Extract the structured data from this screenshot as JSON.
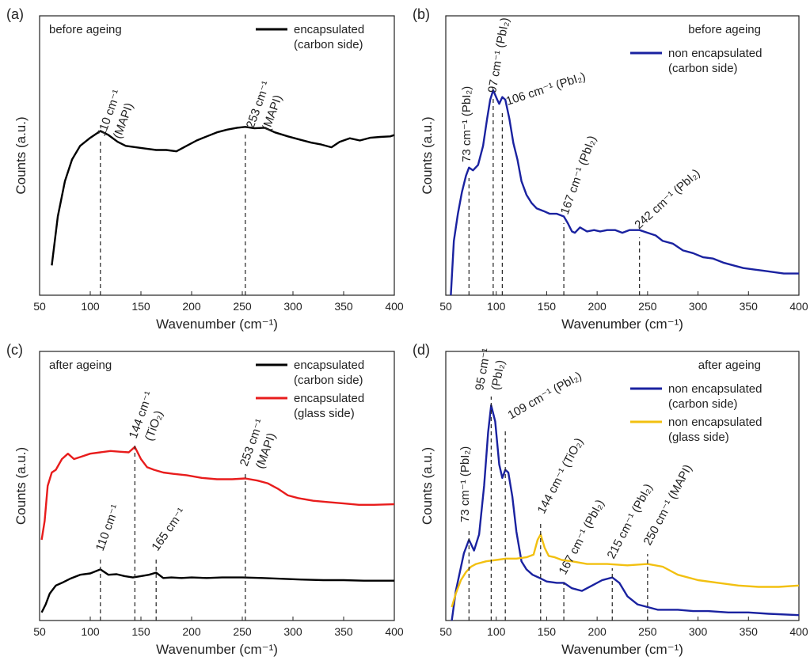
{
  "chart_data": [
    {
      "id": "a",
      "type": "line",
      "panel_label": "(a)",
      "condition": "before ageing",
      "xlabel": "Wavenumber (cm⁻¹)",
      "ylabel": "Counts (a.u.)",
      "xlim": [
        50,
        400
      ],
      "xticks": [
        50,
        100,
        150,
        200,
        250,
        300,
        350,
        400
      ],
      "ylim": [
        0,
        1
      ],
      "legend_position": "top-right",
      "series": [
        {
          "name": "encapsulated\n(carbon side)",
          "color": "#000000",
          "points": [
            [
              62,
              0.11
            ],
            [
              68,
              0.29
            ],
            [
              75,
              0.42
            ],
            [
              82,
              0.5
            ],
            [
              90,
              0.55
            ],
            [
              100,
              0.58
            ],
            [
              110,
              0.605
            ],
            [
              118,
              0.59
            ],
            [
              127,
              0.565
            ],
            [
              135,
              0.55
            ],
            [
              145,
              0.545
            ],
            [
              155,
              0.54
            ],
            [
              165,
              0.535
            ],
            [
              175,
              0.535
            ],
            [
              185,
              0.53
            ],
            [
              195,
              0.55
            ],
            [
              205,
              0.57
            ],
            [
              215,
              0.585
            ],
            [
              225,
              0.6
            ],
            [
              235,
              0.61
            ],
            [
              245,
              0.617
            ],
            [
              253,
              0.62
            ],
            [
              262,
              0.615
            ],
            [
              272,
              0.617
            ],
            [
              282,
              0.6
            ],
            [
              295,
              0.585
            ],
            [
              308,
              0.572
            ],
            [
              318,
              0.562
            ],
            [
              328,
              0.555
            ],
            [
              338,
              0.545
            ],
            [
              346,
              0.565
            ],
            [
              356,
              0.578
            ],
            [
              366,
              0.57
            ],
            [
              376,
              0.58
            ],
            [
              386,
              0.583
            ],
            [
              396,
              0.585
            ],
            [
              400,
              0.59
            ]
          ]
        }
      ],
      "annotations": [
        {
          "x": 110,
          "text": "110 cm⁻¹",
          "sub": "(MAPI)"
        },
        {
          "x": 253,
          "text": "253 cm⁻¹",
          "sub": "(MAPI)"
        }
      ]
    },
    {
      "id": "b",
      "type": "line",
      "panel_label": "(b)",
      "condition": "before ageing",
      "xlabel": "Wavenumber (cm⁻¹)",
      "ylabel": "Counts (a.u.)",
      "xlim": [
        50,
        400
      ],
      "xticks": [
        50,
        100,
        150,
        200,
        250,
        300,
        350,
        400
      ],
      "ylim": [
        0,
        1
      ],
      "legend_position": "top-right",
      "series": [
        {
          "name": "non encapsulated\n(carbon side)",
          "color": "#1a22a0",
          "points": [
            [
              55,
              0.0
            ],
            [
              58,
              0.2
            ],
            [
              62,
              0.3
            ],
            [
              66,
              0.38
            ],
            [
              70,
              0.44
            ],
            [
              73,
              0.47
            ],
            [
              77,
              0.46
            ],
            [
              82,
              0.48
            ],
            [
              87,
              0.55
            ],
            [
              91,
              0.65
            ],
            [
              94,
              0.72
            ],
            [
              97,
              0.755
            ],
            [
              101,
              0.72
            ],
            [
              103,
              0.705
            ],
            [
              106,
              0.73
            ],
            [
              109,
              0.72
            ],
            [
              113,
              0.65
            ],
            [
              117,
              0.56
            ],
            [
              121,
              0.5
            ],
            [
              125,
              0.42
            ],
            [
              130,
              0.37
            ],
            [
              135,
              0.34
            ],
            [
              140,
              0.32
            ],
            [
              147,
              0.31
            ],
            [
              153,
              0.3
            ],
            [
              160,
              0.3
            ],
            [
              167,
              0.29
            ],
            [
              171,
              0.265
            ],
            [
              175,
              0.235
            ],
            [
              178,
              0.23
            ],
            [
              183,
              0.25
            ],
            [
              190,
              0.235
            ],
            [
              197,
              0.24
            ],
            [
              203,
              0.235
            ],
            [
              210,
              0.24
            ],
            [
              218,
              0.24
            ],
            [
              225,
              0.23
            ],
            [
              232,
              0.24
            ],
            [
              242,
              0.24
            ],
            [
              250,
              0.23
            ],
            [
              258,
              0.22
            ],
            [
              265,
              0.2
            ],
            [
              275,
              0.19
            ],
            [
              285,
              0.165
            ],
            [
              295,
              0.155
            ],
            [
              305,
              0.14
            ],
            [
              315,
              0.135
            ],
            [
              325,
              0.12
            ],
            [
              335,
              0.11
            ],
            [
              345,
              0.1
            ],
            [
              355,
              0.095
            ],
            [
              365,
              0.09
            ],
            [
              375,
              0.085
            ],
            [
              385,
              0.08
            ],
            [
              395,
              0.08
            ],
            [
              400,
              0.08
            ]
          ]
        }
      ],
      "annotations": [
        {
          "x": 73,
          "text": "73 cm⁻¹ (PbI₂)"
        },
        {
          "x": 97,
          "text": "97 cm⁻¹ (PbI₂)"
        },
        {
          "x": 106,
          "text": "106 cm⁻¹ (PbI₂)"
        },
        {
          "x": 167,
          "text": "167 cm⁻¹ (PbI₂)"
        },
        {
          "x": 242,
          "text": "242 cm⁻¹ (PbI₂)"
        }
      ]
    },
    {
      "id": "c",
      "type": "line",
      "panel_label": "(c)",
      "condition": "after ageing",
      "xlabel": "Wavenumber (cm⁻¹)",
      "ylabel": "Counts (a.u.)",
      "xlim": [
        50,
        400
      ],
      "xticks": [
        50,
        100,
        150,
        200,
        250,
        300,
        350,
        400
      ],
      "ylim": [
        0,
        1
      ],
      "legend_position": "top-right",
      "series": [
        {
          "name": "encapsulated\n(carbon side)",
          "color": "#000000",
          "points": [
            [
              52,
              0.03
            ],
            [
              56,
              0.06
            ],
            [
              60,
              0.1
            ],
            [
              66,
              0.13
            ],
            [
              72,
              0.14
            ],
            [
              80,
              0.155
            ],
            [
              90,
              0.17
            ],
            [
              100,
              0.175
            ],
            [
              110,
              0.19
            ],
            [
              118,
              0.17
            ],
            [
              126,
              0.172
            ],
            [
              134,
              0.165
            ],
            [
              142,
              0.16
            ],
            [
              150,
              0.165
            ],
            [
              158,
              0.17
            ],
            [
              165,
              0.178
            ],
            [
              172,
              0.158
            ],
            [
              180,
              0.16
            ],
            [
              190,
              0.158
            ],
            [
              200,
              0.16
            ],
            [
              215,
              0.158
            ],
            [
              230,
              0.16
            ],
            [
              250,
              0.16
            ],
            [
              270,
              0.158
            ],
            [
              290,
              0.155
            ],
            [
              310,
              0.152
            ],
            [
              330,
              0.15
            ],
            [
              350,
              0.15
            ],
            [
              370,
              0.148
            ],
            [
              390,
              0.148
            ],
            [
              400,
              0.148
            ]
          ]
        },
        {
          "name": "encapsulated\n(glass side)",
          "color": "#e81c1c",
          "points": [
            [
              52,
              0.3
            ],
            [
              55,
              0.37
            ],
            [
              58,
              0.5
            ],
            [
              62,
              0.55
            ],
            [
              66,
              0.56
            ],
            [
              72,
              0.6
            ],
            [
              78,
              0.62
            ],
            [
              84,
              0.6
            ],
            [
              92,
              0.61
            ],
            [
              100,
              0.62
            ],
            [
              110,
              0.625
            ],
            [
              120,
              0.63
            ],
            [
              130,
              0.627
            ],
            [
              138,
              0.625
            ],
            [
              144,
              0.645
            ],
            [
              150,
              0.6
            ],
            [
              156,
              0.57
            ],
            [
              163,
              0.56
            ],
            [
              172,
              0.55
            ],
            [
              182,
              0.545
            ],
            [
              195,
              0.54
            ],
            [
              210,
              0.53
            ],
            [
              225,
              0.525
            ],
            [
              240,
              0.525
            ],
            [
              253,
              0.528
            ],
            [
              265,
              0.52
            ],
            [
              275,
              0.51
            ],
            [
              285,
              0.49
            ],
            [
              295,
              0.465
            ],
            [
              305,
              0.455
            ],
            [
              320,
              0.445
            ],
            [
              335,
              0.44
            ],
            [
              350,
              0.435
            ],
            [
              365,
              0.43
            ],
            [
              380,
              0.43
            ],
            [
              400,
              0.432
            ]
          ]
        }
      ],
      "annotations": [
        {
          "x": 144,
          "text": "144 cm⁻¹",
          "sub": "(TiO₂)"
        },
        {
          "x": 253,
          "text": "253 cm⁻¹",
          "sub": "(MAPI)"
        },
        {
          "x": 110,
          "text": "110 cm⁻¹"
        },
        {
          "x": 165,
          "text": "165 cm⁻¹"
        }
      ]
    },
    {
      "id": "d",
      "type": "line",
      "panel_label": "(d)",
      "condition": "after ageing",
      "xlabel": "Wavenumber (cm⁻¹)",
      "ylabel": "Counts (a.u.)",
      "xlim": [
        50,
        400
      ],
      "xticks": [
        50,
        100,
        150,
        200,
        250,
        300,
        350,
        400
      ],
      "ylim": [
        0,
        1
      ],
      "legend_position": "top-right",
      "series": [
        {
          "name": "non encapsulated\n(carbon side)",
          "color": "#1a22a0",
          "points": [
            [
              56,
              0.0
            ],
            [
              60,
              0.11
            ],
            [
              64,
              0.18
            ],
            [
              68,
              0.25
            ],
            [
              73,
              0.3
            ],
            [
              78,
              0.26
            ],
            [
              83,
              0.32
            ],
            [
              88,
              0.5
            ],
            [
              92,
              0.7
            ],
            [
              95,
              0.8
            ],
            [
              99,
              0.74
            ],
            [
              103,
              0.58
            ],
            [
              106,
              0.53
            ],
            [
              109,
              0.56
            ],
            [
              112,
              0.55
            ],
            [
              116,
              0.46
            ],
            [
              120,
              0.33
            ],
            [
              125,
              0.22
            ],
            [
              130,
              0.19
            ],
            [
              136,
              0.17
            ],
            [
              142,
              0.16
            ],
            [
              150,
              0.145
            ],
            [
              160,
              0.14
            ],
            [
              167,
              0.14
            ],
            [
              175,
              0.12
            ],
            [
              185,
              0.11
            ],
            [
              195,
              0.13
            ],
            [
              205,
              0.15
            ],
            [
              215,
              0.16
            ],
            [
              222,
              0.14
            ],
            [
              230,
              0.09
            ],
            [
              240,
              0.06
            ],
            [
              250,
              0.05
            ],
            [
              260,
              0.04
            ],
            [
              270,
              0.04
            ],
            [
              280,
              0.04
            ],
            [
              295,
              0.035
            ],
            [
              310,
              0.035
            ],
            [
              330,
              0.03
            ],
            [
              350,
              0.03
            ],
            [
              370,
              0.025
            ],
            [
              400,
              0.02
            ]
          ]
        },
        {
          "name": "non encapsulated\n(glass side)",
          "color": "#f2c010",
          "points": [
            [
              56,
              0.05
            ],
            [
              60,
              0.1
            ],
            [
              65,
              0.15
            ],
            [
              70,
              0.18
            ],
            [
              75,
              0.2
            ],
            [
              80,
              0.21
            ],
            [
              90,
              0.22
            ],
            [
              100,
              0.225
            ],
            [
              110,
              0.23
            ],
            [
              120,
              0.23
            ],
            [
              130,
              0.235
            ],
            [
              137,
              0.245
            ],
            [
              141,
              0.3
            ],
            [
              144,
              0.32
            ],
            [
              148,
              0.27
            ],
            [
              152,
              0.24
            ],
            [
              158,
              0.235
            ],
            [
              165,
              0.225
            ],
            [
              175,
              0.22
            ],
            [
              190,
              0.21
            ],
            [
              210,
              0.21
            ],
            [
              230,
              0.205
            ],
            [
              250,
              0.21
            ],
            [
              265,
              0.2
            ],
            [
              280,
              0.17
            ],
            [
              300,
              0.15
            ],
            [
              320,
              0.14
            ],
            [
              340,
              0.13
            ],
            [
              360,
              0.125
            ],
            [
              380,
              0.125
            ],
            [
              400,
              0.13
            ]
          ]
        }
      ],
      "annotations": [
        {
          "x": 73,
          "text": "73 cm⁻¹ (PbI₂)"
        },
        {
          "x": 95,
          "text": "95 cm⁻¹",
          "sub": "(PbI₂)"
        },
        {
          "x": 109,
          "text": "109 cm⁻¹ (PbI₂)"
        },
        {
          "x": 144,
          "text": "144 cm⁻¹ (TiO₂)"
        },
        {
          "x": 167,
          "text": "167 cm⁻¹ (PbI₂)"
        },
        {
          "x": 215,
          "text": "215 cm⁻¹ (PbI₂)"
        },
        {
          "x": 250,
          "text": "250 cm⁻¹ (MAPI)"
        }
      ]
    }
  ]
}
